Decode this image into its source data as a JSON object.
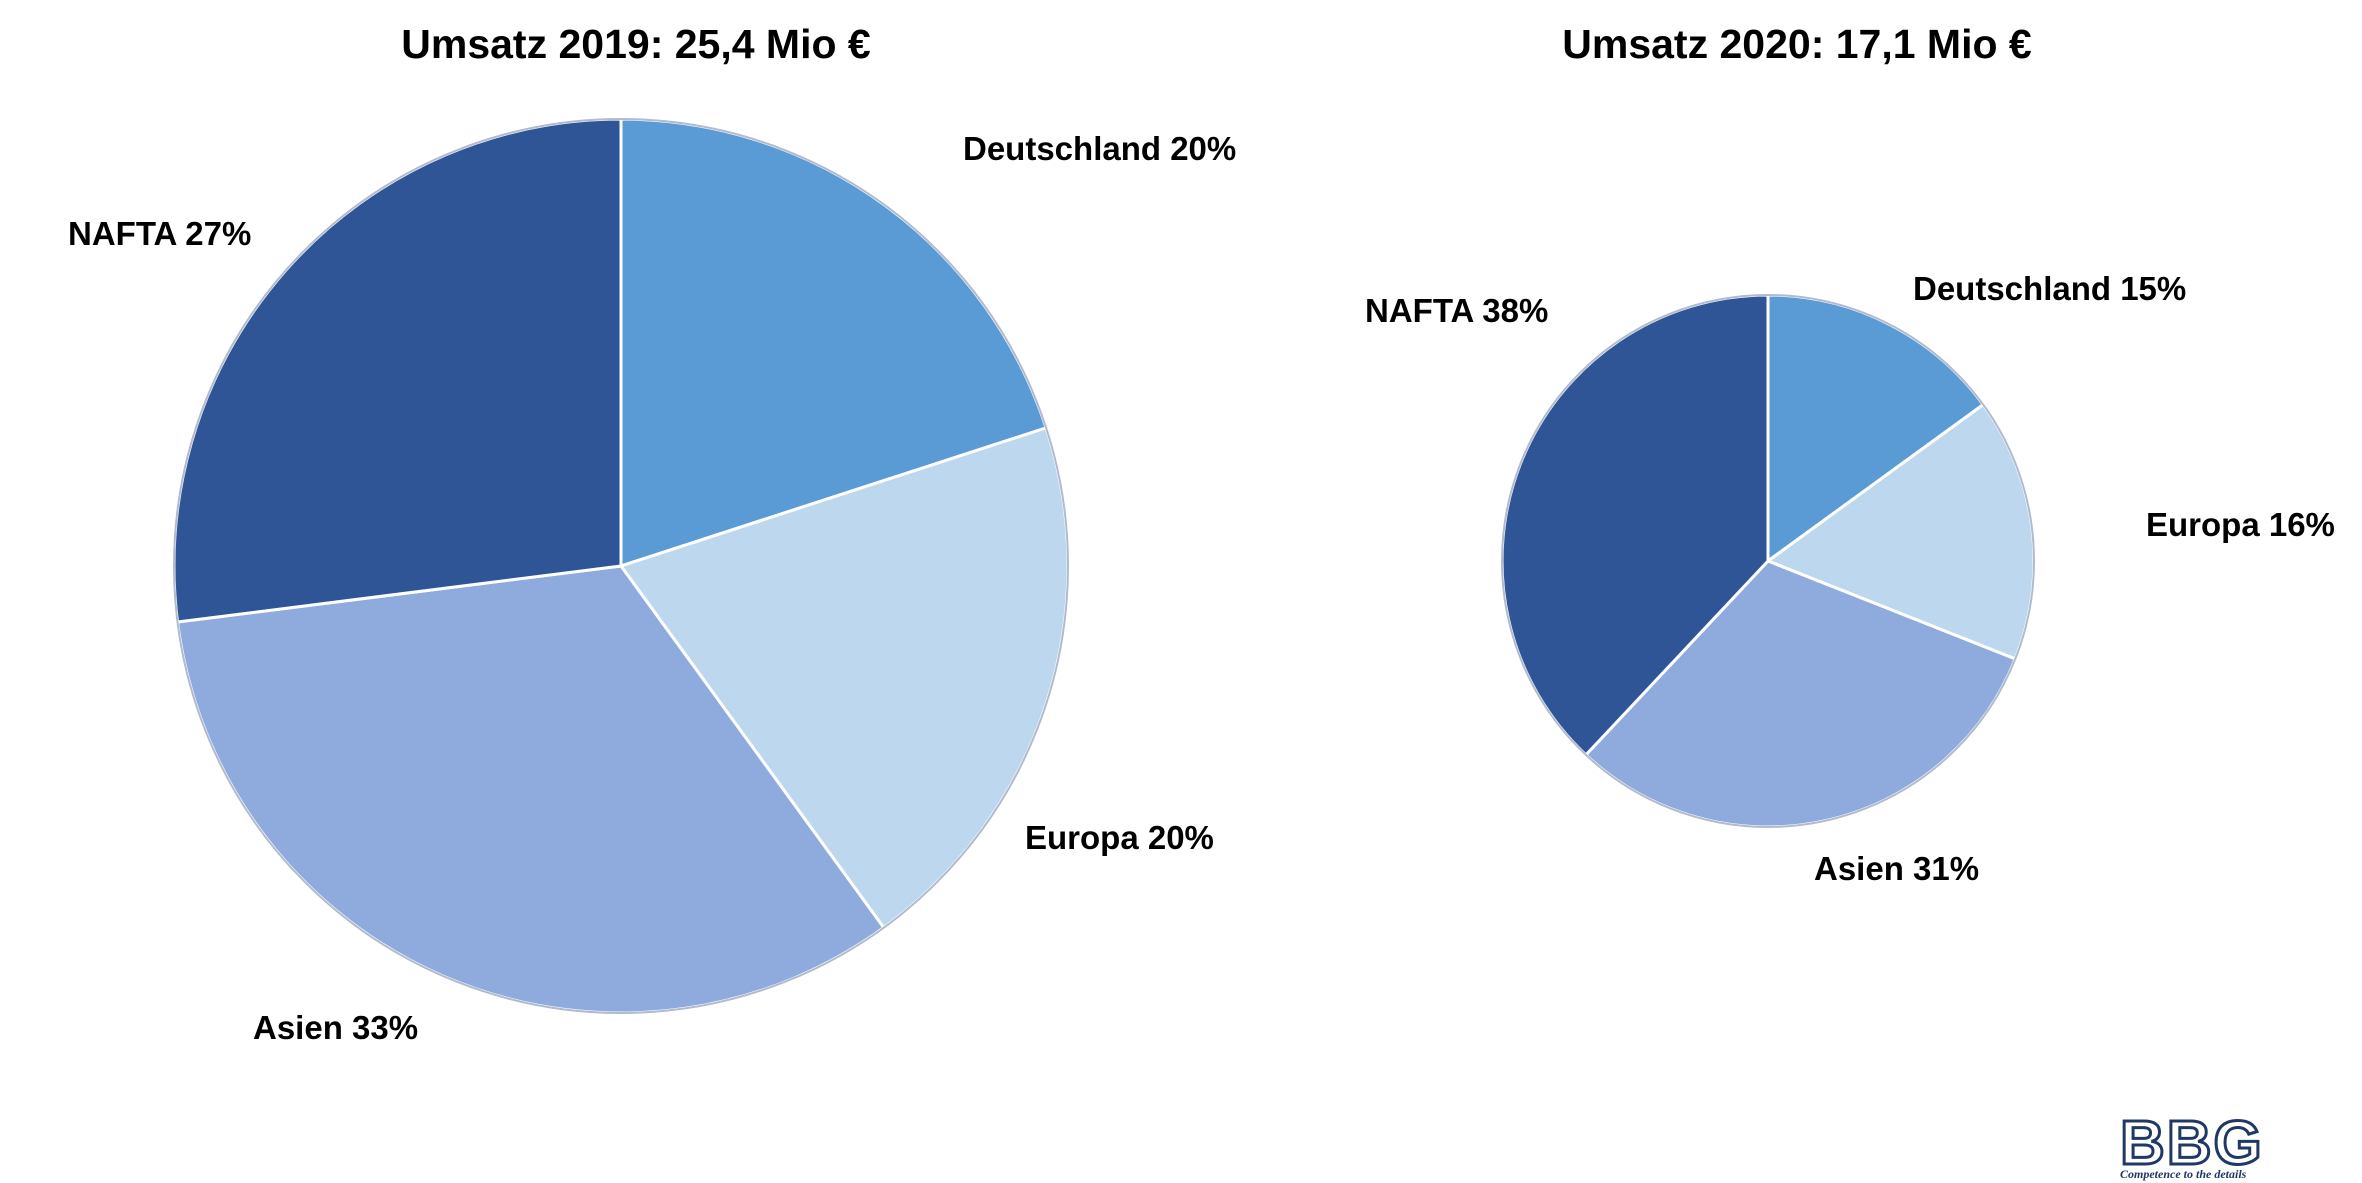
{
  "colors": {
    "deutschland": "#5b9bd5",
    "europa": "#bdd7ee",
    "asien": "#8faadc",
    "nafta": "#2f5597",
    "outline": "#1f3b73",
    "separator": "#ffffff"
  },
  "chart_data": [
    {
      "type": "pie",
      "title": "Umsatz 2019: 25,4 Mio €",
      "start_angle_deg": 0,
      "direction": "clockwise",
      "slices": [
        {
          "name": "Deutschland",
          "value": 20,
          "label": "Deutschland 20%",
          "color": "#5b9bd5"
        },
        {
          "name": "Europa",
          "value": 20,
          "label": "Europa 20%",
          "color": "#bdd7ee"
        },
        {
          "name": "Asien",
          "value": 33,
          "label": "Asien 33%",
          "color": "#8faadc"
        },
        {
          "name": "NAFTA",
          "value": 27,
          "label": "NAFTA 27%",
          "color": "#2f5597"
        }
      ]
    },
    {
      "type": "pie",
      "title": "Umsatz 2020: 17,1 Mio €",
      "start_angle_deg": 0,
      "direction": "clockwise",
      "slices": [
        {
          "name": "Deutschland",
          "value": 15,
          "label": "Deutschland 15%",
          "color": "#5b9bd5"
        },
        {
          "name": "Europa",
          "value": 16,
          "label": "Europa 16%",
          "color": "#bdd7ee"
        },
        {
          "name": "Asien",
          "value": 31,
          "label": "Asien 31%",
          "color": "#8faadc"
        },
        {
          "name": "NAFTA",
          "value": 38,
          "label": "NAFTA 38%",
          "color": "#2f5597"
        }
      ]
    }
  ],
  "logo": {
    "letters": "BBG",
    "tagline": "Competence to the details"
  }
}
